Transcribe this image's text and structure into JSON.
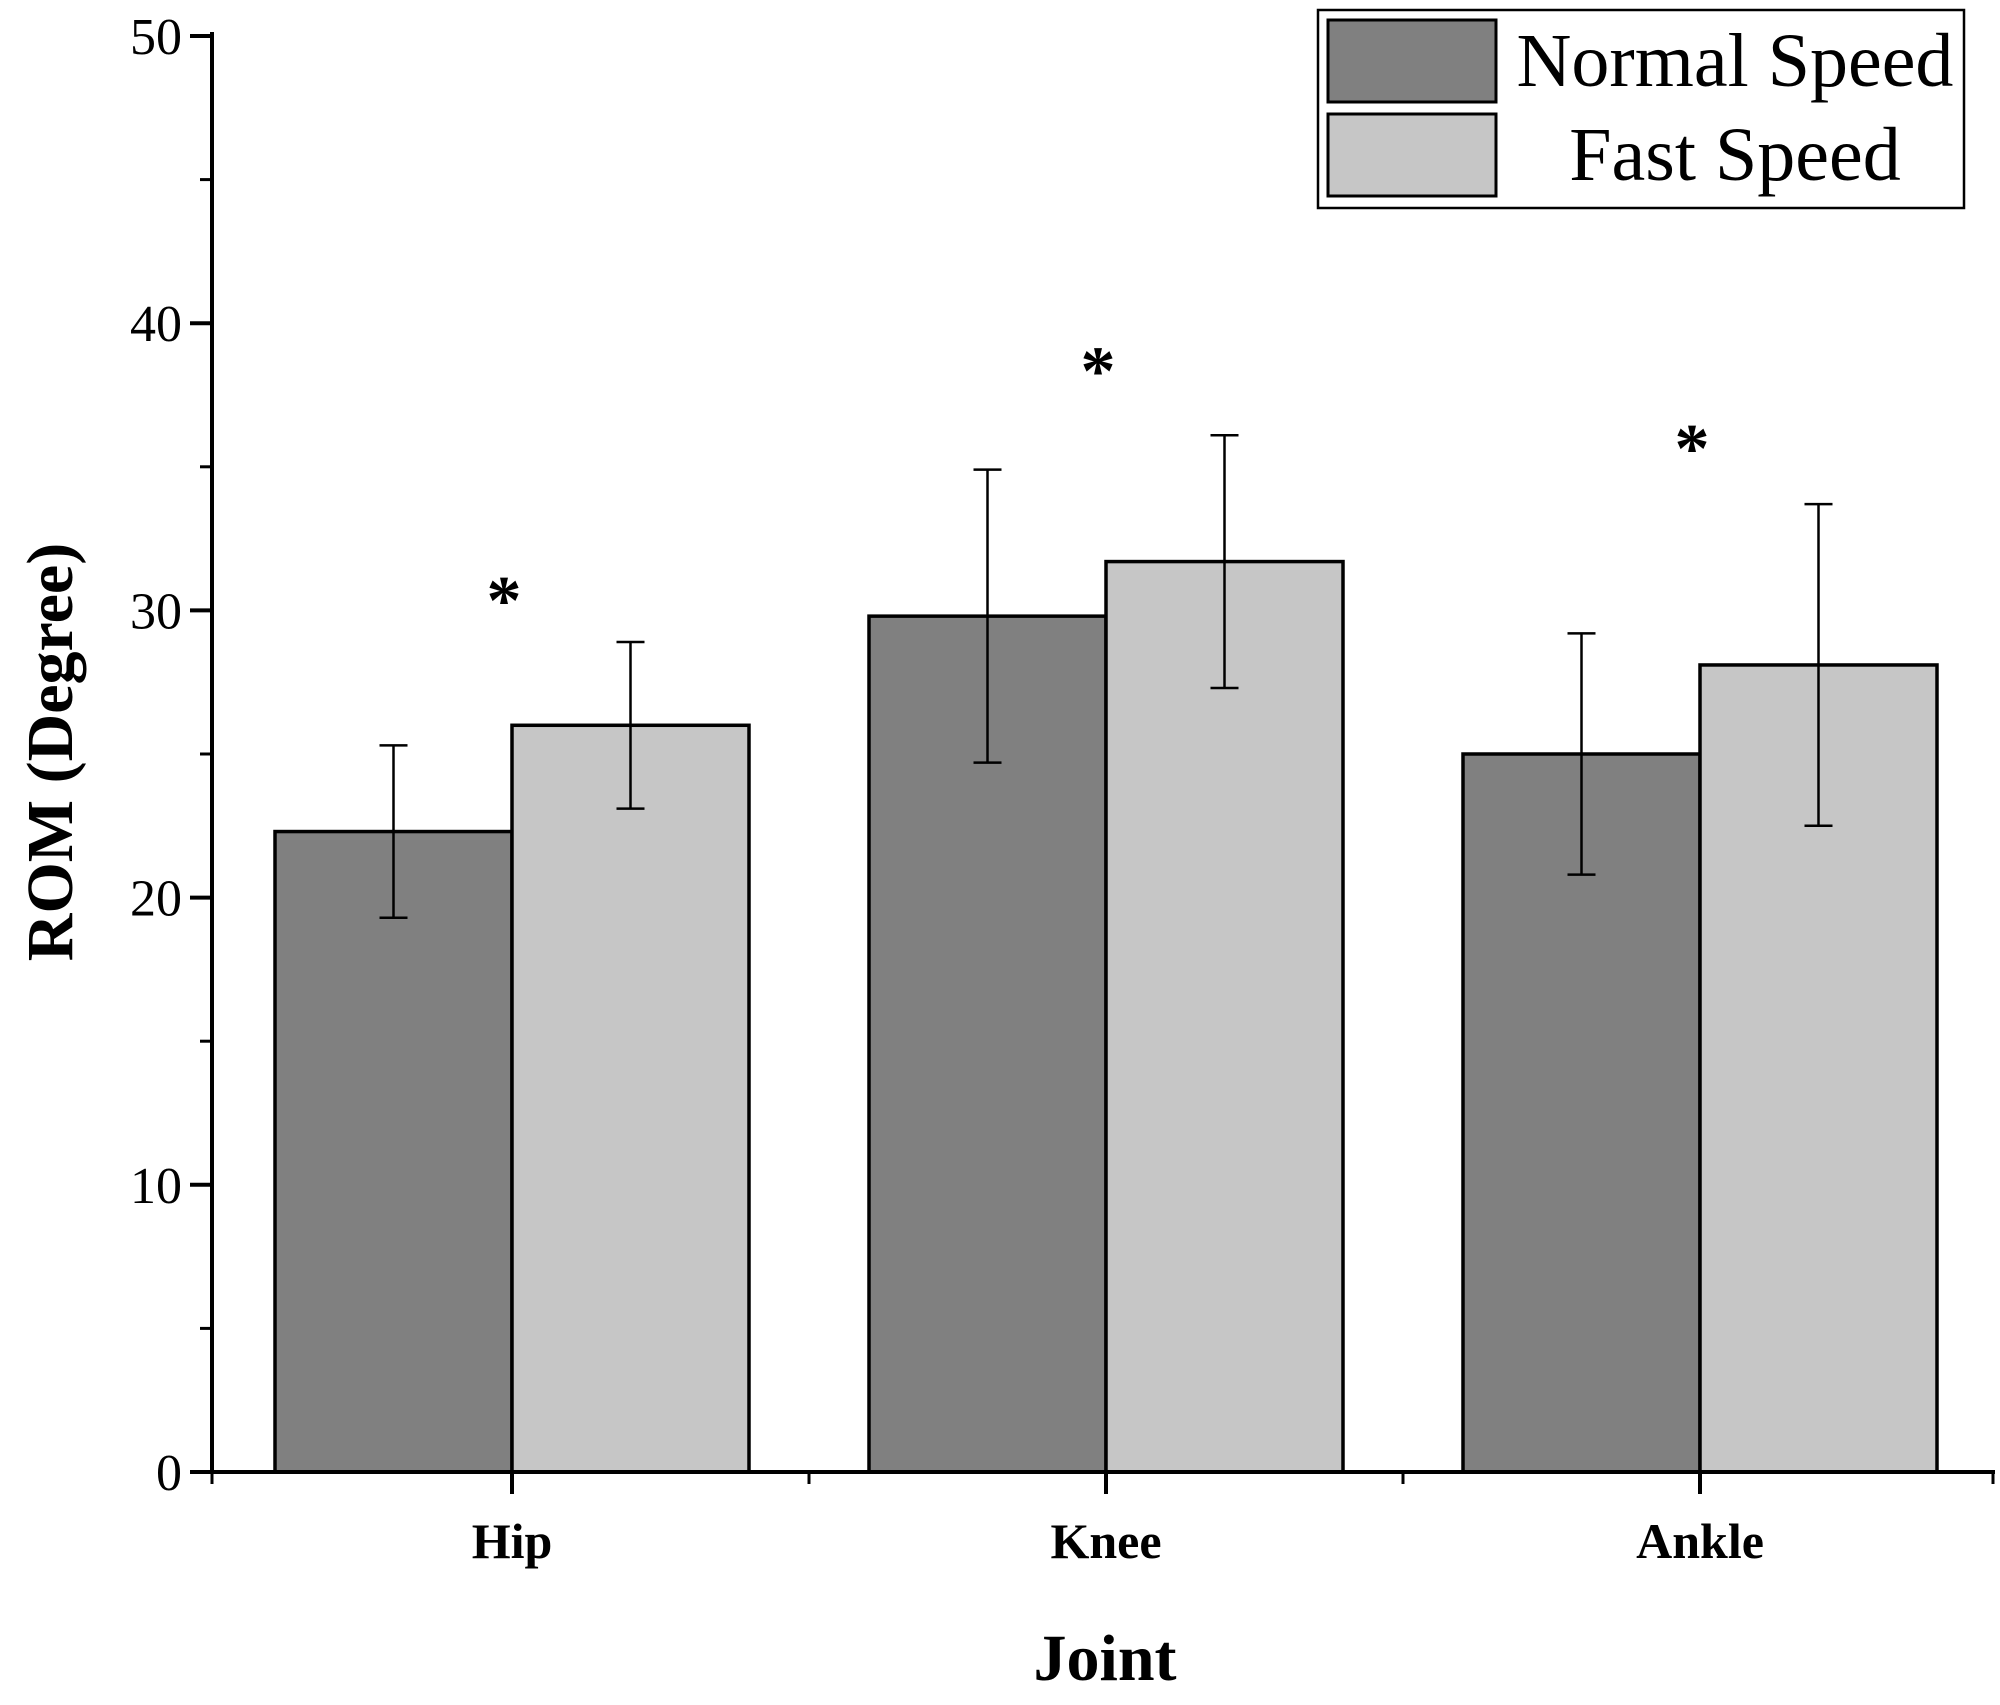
{
  "chart_data": {
    "type": "bar",
    "title": "",
    "xlabel": "Joint",
    "ylabel": "ROM (Degree)",
    "ylim": [
      0,
      50
    ],
    "y_major_ticks": [
      0,
      10,
      20,
      30,
      40,
      50
    ],
    "y_minor_ticks": [
      5,
      15,
      25,
      35,
      45
    ],
    "categories": [
      "Hip",
      "Knee",
      "Ankle"
    ],
    "series": [
      {
        "name": "Normal Speed",
        "color": "#808080",
        "values": [
          22.3,
          29.8,
          25.0
        ],
        "error": [
          3.0,
          5.1,
          4.2
        ]
      },
      {
        "name": "Fast Speed",
        "color": "#c6c6c6",
        "values": [
          26.0,
          31.7,
          28.1
        ],
        "error": [
          2.9,
          4.4,
          5.6
        ]
      }
    ],
    "significance": [
      {
        "category": "Hip",
        "label": "*",
        "y": 30.5
      },
      {
        "category": "Knee",
        "label": "*",
        "y": 38.5
      },
      {
        "category": "Ankle",
        "label": "*",
        "y": 35.8
      }
    ],
    "legend": {
      "position": "top-right"
    },
    "grid": false
  }
}
